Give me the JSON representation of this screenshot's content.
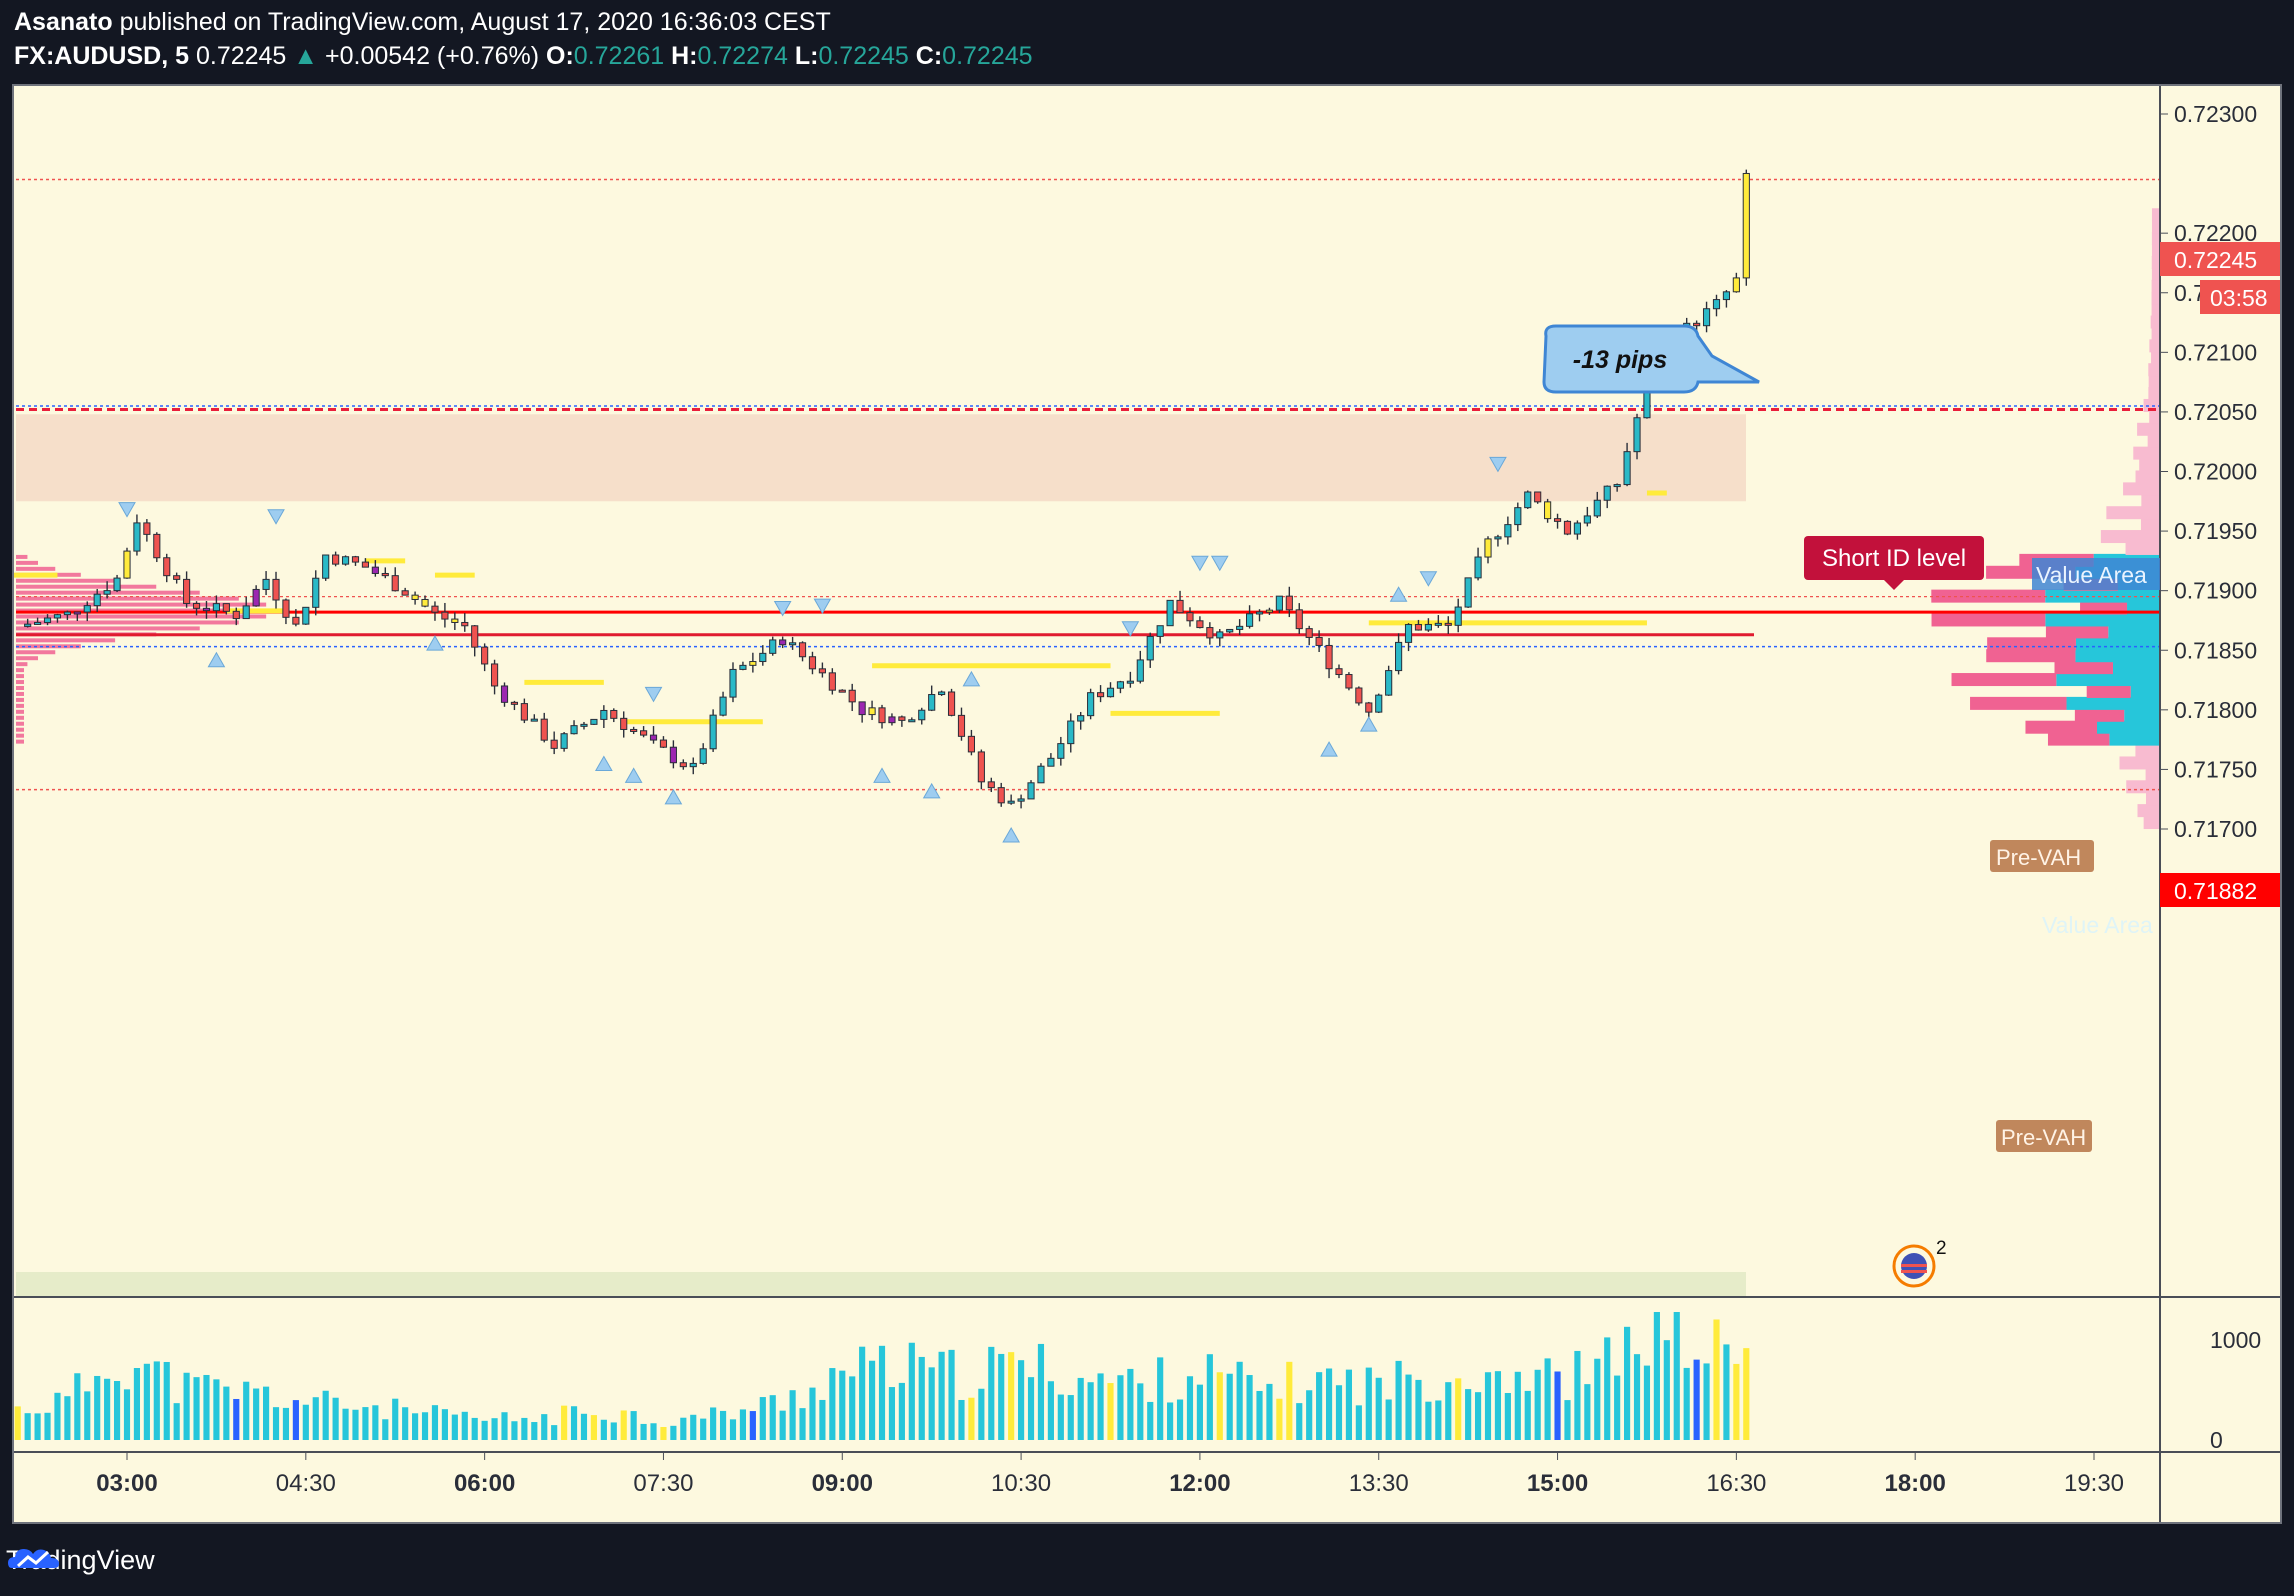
{
  "header": {
    "author": "Asanato",
    "published_text": "published on TradingView.com, August 17, 2020 16:36:03 CEST",
    "symbol": "FX:AUDUSD, 5",
    "price": "0.72245",
    "change_arrow": "▲",
    "change": "+0.00542 (+0.76%)",
    "o_label": "O:",
    "o_value": "0.72261",
    "h_label": "H:",
    "h_value": "0.72274",
    "l_label": "L:",
    "l_value": "0.72245",
    "c_label": "C:",
    "c_value": "0.72245"
  },
  "annotations": {
    "pips_callout": "-13 pips",
    "short_id_label": "Short ID level",
    "value_area_top": "Value Area",
    "value_area_mid": "Value Area",
    "pre_vah_top": "Pre-VAH",
    "pre_vah_bottom": "Pre-VAH",
    "price_badge": "0.72245",
    "countdown_badge": "03:58",
    "level_badge": "0.71882",
    "event_badge_count": "2"
  },
  "footer": {
    "brand": "TradingView"
  },
  "colors": {
    "background": "#fdf9df",
    "up_candle": "#2ab9c7",
    "down_candle": "#ef5350",
    "yellow_candle": "#ffeb3b",
    "purple_candle": "#9c27b0",
    "volume": "#26c6da",
    "volume_yellow": "#ffeb3b",
    "volume_blue": "#2962ff",
    "volume_red": "#ef5350",
    "red_level": "#e91e3a",
    "profile_pink": "#f06292",
    "profile_light": "#f8bbd0",
    "profile_cyan": "#26c6da",
    "zone_fill": "#f5dcc8",
    "label_crimson": "#c2113b",
    "callout_blue": "#9ecdf0"
  },
  "chart_data": {
    "type": "candlestick",
    "symbol": "FX:AUDUSD",
    "interval": "5",
    "y_ticks": [
      "0.72300",
      "0.72200",
      "0.72150",
      "0.72100",
      "0.72050",
      "0.72000",
      "0.71950",
      "0.71900",
      "0.71850",
      "0.71800",
      "0.71750",
      "0.71700"
    ],
    "x_ticks": [
      "03:00",
      "04:30",
      "06:00",
      "07:30",
      "09:00",
      "10:30",
      "12:00",
      "13:30",
      "15:00",
      "16:30",
      "18:00",
      "19:30"
    ],
    "volume_ticks": [
      "1000",
      "0"
    ],
    "ylim": [
      0.7166,
      0.7233
    ],
    "levels": {
      "last_price": 0.72245,
      "short_id_level": 0.72052,
      "value_area_high": 0.72055,
      "red_level_1": 0.71882,
      "red_level_2": 0.71863,
      "value_area_low": 0.71853,
      "pre_vah": 0.71733,
      "pre_vah_upper": 0.71895
    },
    "zones": [
      {
        "from": 0.71975,
        "to": 0.72048,
        "label": ""
      }
    ],
    "close_path": [
      {
        "t": "02:05",
        "c": 0.7187
      },
      {
        "t": "02:30",
        "c": 0.7188
      },
      {
        "t": "02:55",
        "c": 0.7191
      },
      {
        "t": "03:05",
        "c": 0.7196
      },
      {
        "t": "03:30",
        "c": 0.7189
      },
      {
        "t": "03:55",
        "c": 0.7188
      },
      {
        "t": "04:10",
        "c": 0.7191
      },
      {
        "t": "04:25",
        "c": 0.7187
      },
      {
        "t": "04:40",
        "c": 0.7193
      },
      {
        "t": "05:00",
        "c": 0.7192
      },
      {
        "t": "05:20",
        "c": 0.719
      },
      {
        "t": "05:35",
        "c": 0.7188
      },
      {
        "t": "05:50",
        "c": 0.7187
      },
      {
        "t": "06:05",
        "c": 0.7182
      },
      {
        "t": "06:35",
        "c": 0.7177
      },
      {
        "t": "07:00",
        "c": 0.718
      },
      {
        "t": "07:25",
        "c": 0.7177
      },
      {
        "t": "07:45",
        "c": 0.7175
      },
      {
        "t": "08:05",
        "c": 0.7183
      },
      {
        "t": "08:30",
        "c": 0.7186
      },
      {
        "t": "08:50",
        "c": 0.7183
      },
      {
        "t": "09:10",
        "c": 0.718
      },
      {
        "t": "09:30",
        "c": 0.7179
      },
      {
        "t": "09:50",
        "c": 0.7182
      },
      {
        "t": "10:10",
        "c": 0.7174
      },
      {
        "t": "10:25",
        "c": 0.7172
      },
      {
        "t": "10:45",
        "c": 0.7176
      },
      {
        "t": "11:05",
        "c": 0.7181
      },
      {
        "t": "11:25",
        "c": 0.7183
      },
      {
        "t": "11:45",
        "c": 0.7189
      },
      {
        "t": "12:10",
        "c": 0.7186
      },
      {
        "t": "12:40",
        "c": 0.7189
      },
      {
        "t": "13:05",
        "c": 0.7184
      },
      {
        "t": "13:25",
        "c": 0.718
      },
      {
        "t": "13:45",
        "c": 0.7187
      },
      {
        "t": "14:05",
        "c": 0.7187
      },
      {
        "t": "14:25",
        "c": 0.7194
      },
      {
        "t": "14:45",
        "c": 0.7198
      },
      {
        "t": "15:05",
        "c": 0.7195
      },
      {
        "t": "15:30",
        "c": 0.7199
      },
      {
        "t": "15:50",
        "c": 0.721
      },
      {
        "t": "16:05",
        "c": 0.7212
      },
      {
        "t": "16:20",
        "c": 0.7214
      },
      {
        "t": "16:30",
        "c": 0.7216
      },
      {
        "t": "16:35",
        "c": 0.72245
      }
    ],
    "volume_approx": [
      [
        "02:05",
        300
      ],
      [
        "02:30",
        400
      ],
      [
        "02:55",
        850
      ],
      [
        "03:30",
        520
      ],
      [
        "04:00",
        480
      ],
      [
        "04:30",
        380
      ],
      [
        "05:00",
        340
      ],
      [
        "05:30",
        260
      ],
      [
        "06:00",
        200
      ],
      [
        "06:30",
        220
      ],
      [
        "07:00",
        310
      ],
      [
        "07:30",
        180
      ],
      [
        "08:00",
        260
      ],
      [
        "08:30",
        380
      ],
      [
        "09:00",
        680
      ],
      [
        "09:30",
        720
      ],
      [
        "10:00",
        640
      ],
      [
        "10:30",
        760
      ],
      [
        "11:00",
        620
      ],
      [
        "11:30",
        560
      ],
      [
        "12:00",
        680
      ],
      [
        "12:30",
        520
      ],
      [
        "13:00",
        600
      ],
      [
        "13:30",
        560
      ],
      [
        "14:00",
        640
      ],
      [
        "14:30",
        700
      ],
      [
        "15:00",
        600
      ],
      [
        "15:30",
        780
      ],
      [
        "15:50",
        1250
      ],
      [
        "16:10",
        950
      ],
      [
        "16:30",
        840
      ]
    ]
  }
}
